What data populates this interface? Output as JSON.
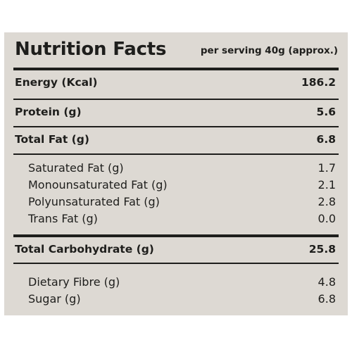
{
  "header": {
    "title": "Nutrition Facts",
    "serving": "per serving 40g (approx.)"
  },
  "main_rows": [
    {
      "label": "Energy (Kcal)",
      "value": "186.2"
    },
    {
      "label": "Protein (g)",
      "value": "5.6"
    },
    {
      "label": "Total Fat (g)",
      "value": "6.8"
    },
    {
      "label": "Total Carbohydrate (g)",
      "value": "25.8"
    }
  ],
  "fat_breakdown": [
    {
      "label": "Saturated Fat (g)",
      "value": "1.7"
    },
    {
      "label": "Monounsaturated Fat (g)",
      "value": "2.1"
    },
    {
      "label": "Polyunsaturated Fat (g)",
      "value": "2.8"
    },
    {
      "label": "Trans Fat (g)",
      "value": "0.0"
    }
  ],
  "carb_breakdown": [
    {
      "label": "Dietary Fibre (g)",
      "value": "4.8"
    },
    {
      "label": "Sugar (g)",
      "value": "6.8"
    }
  ]
}
